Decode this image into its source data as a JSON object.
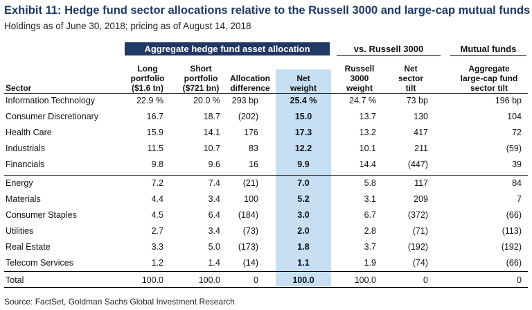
{
  "title": "Exhibit 11: Hedge fund sector allocations relative to the Russell 3000 and large-cap mutual funds",
  "subtitle": "Holdings as of June 30, 2018; pricing as of August 14, 2018",
  "groups": {
    "hedge_fund": "Aggregate hedge fund asset allocation",
    "russell": "vs. Russell 3000",
    "mutual": "Mutual funds"
  },
  "headers": {
    "sector": "Sector",
    "long": [
      "Long",
      "portfolio",
      "($1.6 tn)"
    ],
    "short": [
      "Short",
      "portfolio",
      "($721 bn)"
    ],
    "alloc": [
      "Allocation",
      "difference"
    ],
    "net": [
      "Net",
      "weight"
    ],
    "r3": [
      "Russell",
      "3000",
      "weight"
    ],
    "tilt": [
      "Net",
      "sector",
      "tilt"
    ],
    "mf": [
      "Aggregate",
      "large-cap fund",
      "sector tilt"
    ]
  },
  "rows": [
    {
      "sector": "Information Technology",
      "long": "22.9 %",
      "short": "20.0 %",
      "alloc": "293  bp",
      "net": "25.4 %",
      "r3": "24.7 %",
      "tilt": "73  bp",
      "mf": "196  bp"
    },
    {
      "sector": "Consumer Discretionary",
      "long": "16.7",
      "short": "18.7",
      "alloc": "(202)",
      "net": "15.0",
      "r3": "13.7",
      "tilt": "130",
      "mf": "104"
    },
    {
      "sector": "Health Care",
      "long": "15.9",
      "short": "14.1",
      "alloc": "176",
      "net": "17.3",
      "r3": "13.2",
      "tilt": "417",
      "mf": "72"
    },
    {
      "sector": "Industrials",
      "long": "11.5",
      "short": "10.7",
      "alloc": "83",
      "net": "12.2",
      "r3": "10.1",
      "tilt": "211",
      "mf": "(59)"
    },
    {
      "sector": "Financials",
      "long": "9.8",
      "short": "9.6",
      "alloc": "16",
      "net": "9.9",
      "r3": "14.4",
      "tilt": "(447)",
      "mf": "39"
    },
    {
      "sector": "Energy",
      "long": "7.2",
      "short": "7.4",
      "alloc": "(21)",
      "net": "7.0",
      "r3": "5.8",
      "tilt": "117",
      "mf": "84"
    },
    {
      "sector": "Materials",
      "long": "4.4",
      "short": "3.4",
      "alloc": "100",
      "net": "5.2",
      "r3": "3.1",
      "tilt": "209",
      "mf": "7"
    },
    {
      "sector": "Consumer Staples",
      "long": "4.5",
      "short": "6.4",
      "alloc": "(184)",
      "net": "3.0",
      "r3": "6.7",
      "tilt": "(372)",
      "mf": "(66)"
    },
    {
      "sector": "Utilities",
      "long": "2.7",
      "short": "3.4",
      "alloc": "(73)",
      "net": "2.0",
      "r3": "2.8",
      "tilt": "(71)",
      "mf": "(113)"
    },
    {
      "sector": "Real Estate",
      "long": "3.3",
      "short": "5.0",
      "alloc": "(173)",
      "net": "1.8",
      "r3": "3.7",
      "tilt": "(192)",
      "mf": "(192)"
    },
    {
      "sector": "Telecom Services",
      "long": "1.2",
      "short": "1.4",
      "alloc": "(14)",
      "net": "1.1",
      "r3": "1.9",
      "tilt": "(74)",
      "mf": "(66)"
    }
  ],
  "total": {
    "sector": "Total",
    "long": "100.0",
    "short": "100.0",
    "alloc": "0",
    "net": "100.0",
    "r3": "100.0",
    "tilt": "0",
    "mf": "0"
  },
  "source": "Source: FactSet, Goldman Sachs Global Investment Research"
}
